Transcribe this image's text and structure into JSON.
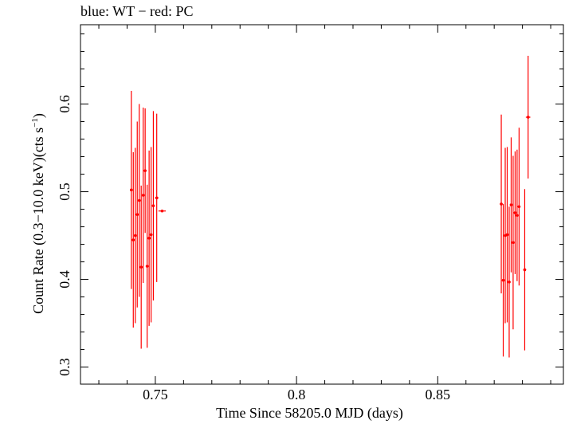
{
  "chart_data": {
    "type": "scatter",
    "title": "blue: WT − red: PC",
    "xlabel": "Time Since 58205.0 MJD (days)",
    "ylabel_main": "Count Rate (0.3−10.0 keV)(cts s",
    "ylabel_sup": "−1",
    "ylabel_end": ")",
    "xlim": [
      0.7235,
      0.8945
    ],
    "ylim": [
      0.2805,
      0.6905
    ],
    "x_ticks": [
      0.75,
      0.8,
      0.85
    ],
    "x_tick_labels": [
      "0.75",
      "0.8",
      "0.85"
    ],
    "y_ticks": [
      0.3,
      0.4,
      0.5,
      0.6
    ],
    "y_tick_labels": [
      "0.3",
      "0.4",
      "0.5",
      "0.6"
    ],
    "series": [
      {
        "color": "#ff0000",
        "points": [
          {
            "x": 0.7415,
            "y": 0.502,
            "yerr": 0.113,
            "xerr": 0.0005
          },
          {
            "x": 0.7422,
            "y": 0.445,
            "yerr": 0.1,
            "xerr": 0.0005
          },
          {
            "x": 0.7429,
            "y": 0.45,
            "yerr": 0.1,
            "xerr": 0.0005
          },
          {
            "x": 0.7436,
            "y": 0.474,
            "yerr": 0.106,
            "xerr": 0.0005
          },
          {
            "x": 0.7443,
            "y": 0.49,
            "yerr": 0.11,
            "xerr": 0.0005
          },
          {
            "x": 0.745,
            "y": 0.414,
            "yerr": 0.093,
            "xerr": 0.0005
          },
          {
            "x": 0.7457,
            "y": 0.496,
            "yerr": 0.1,
            "xerr": 0.0005
          },
          {
            "x": 0.7464,
            "y": 0.524,
            "yerr": 0.071,
            "xerr": 0.0005
          },
          {
            "x": 0.7471,
            "y": 0.415,
            "yerr": 0.093,
            "xerr": 0.0005
          },
          {
            "x": 0.7478,
            "y": 0.447,
            "yerr": 0.1,
            "xerr": 0.0005
          },
          {
            "x": 0.7485,
            "y": 0.451,
            "yerr": 0.1,
            "xerr": 0.0005
          },
          {
            "x": 0.7493,
            "y": 0.484,
            "yerr": 0.108,
            "xerr": 0.0005
          },
          {
            "x": 0.7505,
            "y": 0.493,
            "yerr": 0.096,
            "xerr": 0.0006
          },
          {
            "x": 0.7524,
            "y": 0.478,
            "yerr": 0.0,
            "xerr": 0.0013
          },
          {
            "x": 0.8725,
            "y": 0.486,
            "yerr": 0.102,
            "xerr": 0.0005
          },
          {
            "x": 0.8732,
            "y": 0.399,
            "yerr": 0.087,
            "xerr": 0.0005
          },
          {
            "x": 0.8739,
            "y": 0.45,
            "yerr": 0.1,
            "xerr": 0.0005
          },
          {
            "x": 0.8746,
            "y": 0.451,
            "yerr": 0.1,
            "xerr": 0.0005
          },
          {
            "x": 0.8753,
            "y": 0.397,
            "yerr": 0.086,
            "xerr": 0.0005
          },
          {
            "x": 0.876,
            "y": 0.485,
            "yerr": 0.077,
            "xerr": 0.0005
          },
          {
            "x": 0.8767,
            "y": 0.442,
            "yerr": 0.099,
            "xerr": 0.0005
          },
          {
            "x": 0.8774,
            "y": 0.476,
            "yerr": 0.07,
            "xerr": 0.0005
          },
          {
            "x": 0.8781,
            "y": 0.473,
            "yerr": 0.075,
            "xerr": 0.0005
          },
          {
            "x": 0.8788,
            "y": 0.483,
            "yerr": 0.09,
            "xerr": 0.0005
          },
          {
            "x": 0.8808,
            "y": 0.411,
            "yerr": 0.092,
            "xerr": 0.0005
          },
          {
            "x": 0.882,
            "y": 0.585,
            "yerr": 0.07,
            "xerr": 0.0008
          }
        ]
      }
    ]
  }
}
